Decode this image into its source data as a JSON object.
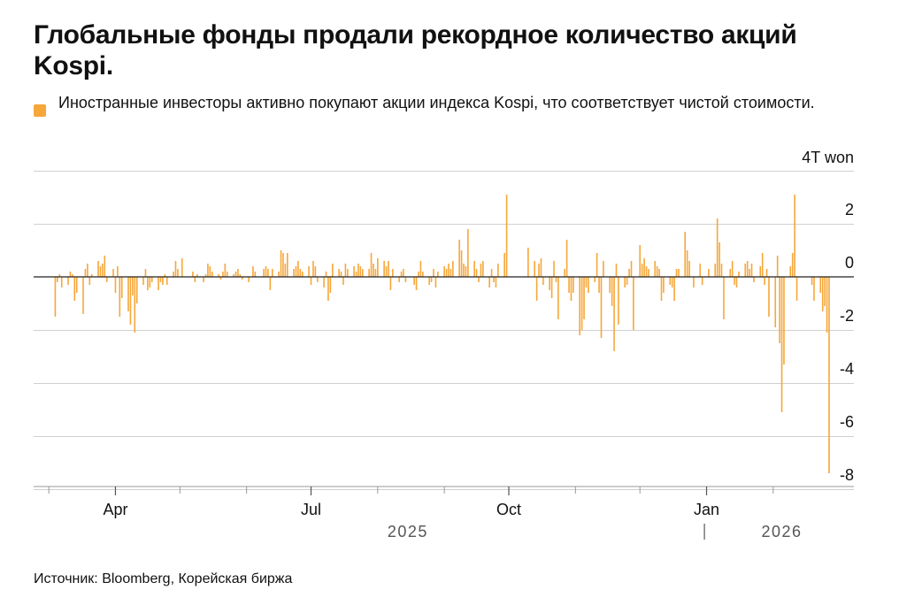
{
  "header": {
    "title": "Глобальные фонды продали рекордное количество акций Kospi."
  },
  "legend": {
    "text": "Иностранные инвесторы активно покупают акции индекса Kospi, что соответствует чистой стоимости."
  },
  "footer": {
    "source": "Источник: Bloomberg, Корейская биржа"
  },
  "colors": {
    "bar": "#F6A73A",
    "grid": "#D0D0D0",
    "zero_line": "#222222",
    "text": "#111111",
    "year_label": "#555555"
  },
  "chart_data": {
    "type": "bar",
    "title": "Глобальные фонды продали рекордное количество акций Kospi.",
    "legend": [
      "Иностранные инвесторы активно покупают акции индекса Kospi, что соответствует чистой стоимости."
    ],
    "unit_label": "4T won",
    "y_axis": {
      "ticks": [
        2,
        0,
        -2,
        -4,
        -6,
        -8
      ],
      "tick_labels": [
        "2",
        "0",
        "-2",
        "-4",
        "-6",
        "-8"
      ],
      "ylim": [
        -8.6,
        4
      ],
      "position": "right",
      "grid": true
    },
    "x_axis": {
      "start": "2025-02-24",
      "end": "2026-02-27",
      "month_labels": [
        {
          "date": "2025-04-01",
          "label": "Apr"
        },
        {
          "date": "2025-07-01",
          "label": "Jul"
        },
        {
          "date": "2025-10-01",
          "label": "Oct"
        },
        {
          "date": "2026-01-01",
          "label": "Jan"
        }
      ],
      "year_labels": [
        {
          "date": "2025-08-15",
          "label": "2025"
        },
        {
          "date": "2026-02-05",
          "label": "2026"
        }
      ],
      "year_divider": "2025-12-31",
      "minor_ticks": [
        "2025-03-01",
        "2025-05-01",
        "2025-06-01",
        "2025-08-01",
        "2025-09-01",
        "2025-11-01",
        "2025-12-01",
        "2026-02-01"
      ]
    },
    "series": [
      {
        "values": [
          [
            "2025-03-04",
            -1.5
          ],
          [
            "2025-03-05",
            -0.2
          ],
          [
            "2025-03-06",
            0.1
          ],
          [
            "2025-03-07",
            -0.4
          ],
          [
            "2025-03-10",
            -0.3
          ],
          [
            "2025-03-11",
            0.2
          ],
          [
            "2025-03-12",
            0.1
          ],
          [
            "2025-03-13",
            -0.9
          ],
          [
            "2025-03-14",
            -0.6
          ],
          [
            "2025-03-17",
            -1.4
          ],
          [
            "2025-03-18",
            0.3
          ],
          [
            "2025-03-19",
            0.5
          ],
          [
            "2025-03-20",
            -0.3
          ],
          [
            "2025-03-21",
            0.1
          ],
          [
            "2025-03-24",
            0.6
          ],
          [
            "2025-03-25",
            0.4
          ],
          [
            "2025-03-26",
            0.5
          ],
          [
            "2025-03-27",
            0.8
          ],
          [
            "2025-03-28",
            -0.2
          ],
          [
            "2025-03-31",
            0.3
          ],
          [
            "2025-04-01",
            -0.6
          ],
          [
            "2025-04-02",
            0.4
          ],
          [
            "2025-04-03",
            -1.5
          ],
          [
            "2025-04-04",
            -0.8
          ],
          [
            "2025-04-07",
            -1.3
          ],
          [
            "2025-04-08",
            -1.8
          ],
          [
            "2025-04-09",
            -0.7
          ],
          [
            "2025-04-10",
            -2.1
          ],
          [
            "2025-04-11",
            -1.0
          ],
          [
            "2025-04-14",
            -0.3
          ],
          [
            "2025-04-15",
            0.3
          ],
          [
            "2025-04-16",
            -0.5
          ],
          [
            "2025-04-17",
            -0.4
          ],
          [
            "2025-04-18",
            -0.2
          ],
          [
            "2025-04-21",
            -0.5
          ],
          [
            "2025-04-22",
            -0.2
          ],
          [
            "2025-04-23",
            -0.3
          ],
          [
            "2025-04-24",
            0.1
          ],
          [
            "2025-04-25",
            -0.3
          ],
          [
            "2025-04-28",
            0.2
          ],
          [
            "2025-04-29",
            0.6
          ],
          [
            "2025-04-30",
            0.3
          ],
          [
            "2025-05-02",
            0.7
          ],
          [
            "2025-05-07",
            0.2
          ],
          [
            "2025-05-08",
            -0.2
          ],
          [
            "2025-05-09",
            0.1
          ],
          [
            "2025-05-12",
            -0.2
          ],
          [
            "2025-05-13",
            0.1
          ],
          [
            "2025-05-14",
            0.5
          ],
          [
            "2025-05-15",
            0.4
          ],
          [
            "2025-05-16",
            0.2
          ],
          [
            "2025-05-19",
            0.1
          ],
          [
            "2025-05-20",
            -0.1
          ],
          [
            "2025-05-21",
            0.2
          ],
          [
            "2025-05-22",
            0.5
          ],
          [
            "2025-05-23",
            0.2
          ],
          [
            "2025-05-26",
            0.1
          ],
          [
            "2025-05-27",
            0.2
          ],
          [
            "2025-05-28",
            0.3
          ],
          [
            "2025-05-29",
            0.1
          ],
          [
            "2025-05-30",
            -0.1
          ],
          [
            "2025-06-02",
            -0.2
          ],
          [
            "2025-06-04",
            0.4
          ],
          [
            "2025-06-05",
            0.2
          ],
          [
            "2025-06-09",
            0.3
          ],
          [
            "2025-06-10",
            0.4
          ],
          [
            "2025-06-11",
            0.3
          ],
          [
            "2025-06-12",
            -0.5
          ],
          [
            "2025-06-13",
            0.3
          ],
          [
            "2025-06-16",
            0.2
          ],
          [
            "2025-06-17",
            1.0
          ],
          [
            "2025-06-18",
            0.9
          ],
          [
            "2025-06-19",
            0.5
          ],
          [
            "2025-06-20",
            0.9
          ],
          [
            "2025-06-23",
            0.3
          ],
          [
            "2025-06-24",
            0.4
          ],
          [
            "2025-06-25",
            0.6
          ],
          [
            "2025-06-26",
            0.3
          ],
          [
            "2025-06-27",
            0.2
          ],
          [
            "2025-06-30",
            0.4
          ],
          [
            "2025-07-01",
            -0.3
          ],
          [
            "2025-07-02",
            0.6
          ],
          [
            "2025-07-03",
            0.4
          ],
          [
            "2025-07-04",
            -0.2
          ],
          [
            "2025-07-07",
            -0.4
          ],
          [
            "2025-07-08",
            0.2
          ],
          [
            "2025-07-09",
            -0.9
          ],
          [
            "2025-07-10",
            -0.6
          ],
          [
            "2025-07-11",
            0.5
          ],
          [
            "2025-07-14",
            0.3
          ],
          [
            "2025-07-15",
            0.2
          ],
          [
            "2025-07-16",
            -0.3
          ],
          [
            "2025-07-17",
            0.5
          ],
          [
            "2025-07-18",
            0.3
          ],
          [
            "2025-07-21",
            0.4
          ],
          [
            "2025-07-22",
            0.2
          ],
          [
            "2025-07-23",
            0.5
          ],
          [
            "2025-07-24",
            0.4
          ],
          [
            "2025-07-25",
            0.3
          ],
          [
            "2025-07-28",
            0.3
          ],
          [
            "2025-07-29",
            0.9
          ],
          [
            "2025-07-30",
            0.5
          ],
          [
            "2025-07-31",
            0.3
          ],
          [
            "2025-08-01",
            0.7
          ],
          [
            "2025-08-04",
            0.6
          ],
          [
            "2025-08-05",
            0.4
          ],
          [
            "2025-08-06",
            0.6
          ],
          [
            "2025-08-07",
            -0.5
          ],
          [
            "2025-08-08",
            0.3
          ],
          [
            "2025-08-11",
            -0.2
          ],
          [
            "2025-08-12",
            0.2
          ],
          [
            "2025-08-13",
            0.3
          ],
          [
            "2025-08-14",
            -0.2
          ],
          [
            "2025-08-18",
            -0.3
          ],
          [
            "2025-08-19",
            -0.5
          ],
          [
            "2025-08-20",
            0.2
          ],
          [
            "2025-08-21",
            0.6
          ],
          [
            "2025-08-22",
            0.2
          ],
          [
            "2025-08-25",
            -0.3
          ],
          [
            "2025-08-26",
            -0.2
          ],
          [
            "2025-08-27",
            0.3
          ],
          [
            "2025-08-28",
            -0.4
          ],
          [
            "2025-08-29",
            0.2
          ],
          [
            "2025-09-01",
            0.4
          ],
          [
            "2025-09-02",
            0.3
          ],
          [
            "2025-09-03",
            0.5
          ],
          [
            "2025-09-04",
            0.3
          ],
          [
            "2025-09-05",
            0.6
          ],
          [
            "2025-09-08",
            1.4
          ],
          [
            "2025-09-09",
            1.0
          ],
          [
            "2025-09-10",
            0.5
          ],
          [
            "2025-09-11",
            0.4
          ],
          [
            "2025-09-12",
            1.8
          ],
          [
            "2025-09-15",
            0.6
          ],
          [
            "2025-09-16",
            0.3
          ],
          [
            "2025-09-17",
            -0.2
          ],
          [
            "2025-09-18",
            0.5
          ],
          [
            "2025-09-19",
            0.6
          ],
          [
            "2025-09-22",
            -0.4
          ],
          [
            "2025-09-23",
            0.3
          ],
          [
            "2025-09-24",
            -0.2
          ],
          [
            "2025-09-25",
            -0.4
          ],
          [
            "2025-09-26",
            0.5
          ],
          [
            "2025-09-29",
            0.9
          ],
          [
            "2025-09-30",
            3.1
          ],
          [
            "2025-10-10",
            1.1
          ],
          [
            "2025-10-13",
            0.6
          ],
          [
            "2025-10-14",
            -0.9
          ],
          [
            "2025-10-15",
            0.5
          ],
          [
            "2025-10-16",
            0.7
          ],
          [
            "2025-10-17",
            -0.3
          ],
          [
            "2025-10-20",
            -0.5
          ],
          [
            "2025-10-21",
            -0.8
          ],
          [
            "2025-10-22",
            0.6
          ],
          [
            "2025-10-23",
            -0.2
          ],
          [
            "2025-10-24",
            -1.6
          ],
          [
            "2025-10-27",
            0.3
          ],
          [
            "2025-10-28",
            1.4
          ],
          [
            "2025-10-29",
            -0.6
          ],
          [
            "2025-10-30",
            -0.9
          ],
          [
            "2025-10-31",
            -0.6
          ],
          [
            "2025-11-03",
            -2.2
          ],
          [
            "2025-11-04",
            -2.0
          ],
          [
            "2025-11-05",
            -1.6
          ],
          [
            "2025-11-06",
            -0.4
          ],
          [
            "2025-11-07",
            -0.6
          ],
          [
            "2025-11-10",
            -0.2
          ],
          [
            "2025-11-11",
            0.9
          ],
          [
            "2025-11-12",
            -0.6
          ],
          [
            "2025-11-13",
            -2.3
          ],
          [
            "2025-11-14",
            0.6
          ],
          [
            "2025-11-17",
            -0.6
          ],
          [
            "2025-11-18",
            -1.1
          ],
          [
            "2025-11-19",
            -2.8
          ],
          [
            "2025-11-20",
            0.5
          ],
          [
            "2025-11-21",
            -1.8
          ],
          [
            "2025-11-24",
            -0.4
          ],
          [
            "2025-11-25",
            -0.3
          ],
          [
            "2025-11-26",
            0.3
          ],
          [
            "2025-11-27",
            0.6
          ],
          [
            "2025-11-28",
            -2.0
          ],
          [
            "2025-12-01",
            1.2
          ],
          [
            "2025-12-02",
            0.5
          ],
          [
            "2025-12-03",
            0.7
          ],
          [
            "2025-12-04",
            0.4
          ],
          [
            "2025-12-05",
            0.3
          ],
          [
            "2025-12-08",
            0.6
          ],
          [
            "2025-12-09",
            0.4
          ],
          [
            "2025-12-10",
            0.3
          ],
          [
            "2025-12-11",
            -0.9
          ],
          [
            "2025-12-12",
            -0.6
          ],
          [
            "2025-12-15",
            -0.3
          ],
          [
            "2025-12-16",
            -0.4
          ],
          [
            "2025-12-17",
            -0.9
          ],
          [
            "2025-12-18",
            0.3
          ],
          [
            "2025-12-19",
            0.3
          ],
          [
            "2025-12-22",
            1.7
          ],
          [
            "2025-12-23",
            1.0
          ],
          [
            "2025-12-24",
            0.6
          ],
          [
            "2025-12-26",
            -0.4
          ],
          [
            "2025-12-29",
            0.5
          ],
          [
            "2025-12-30",
            -0.3
          ],
          [
            "2026-01-02",
            0.3
          ],
          [
            "2026-01-05",
            0.5
          ],
          [
            "2026-01-06",
            2.2
          ],
          [
            "2026-01-07",
            1.3
          ],
          [
            "2026-01-08",
            0.5
          ],
          [
            "2026-01-09",
            -1.6
          ],
          [
            "2026-01-12",
            0.3
          ],
          [
            "2026-01-13",
            0.6
          ],
          [
            "2026-01-14",
            -0.3
          ],
          [
            "2026-01-15",
            -0.4
          ],
          [
            "2026-01-16",
            0.2
          ],
          [
            "2026-01-19",
            0.5
          ],
          [
            "2026-01-20",
            0.6
          ],
          [
            "2026-01-21",
            0.3
          ],
          [
            "2026-01-22",
            0.5
          ],
          [
            "2026-01-23",
            -0.2
          ],
          [
            "2026-01-26",
            0.4
          ],
          [
            "2026-01-27",
            0.9
          ],
          [
            "2026-01-28",
            -0.3
          ],
          [
            "2026-01-29",
            0.3
          ],
          [
            "2026-01-30",
            -1.5
          ],
          [
            "2026-02-02",
            -1.9
          ],
          [
            "2026-02-03",
            0.8
          ],
          [
            "2026-02-04",
            -2.5
          ],
          [
            "2026-02-05",
            -5.1
          ],
          [
            "2026-02-06",
            -3.3
          ],
          [
            "2026-02-09",
            0.4
          ],
          [
            "2026-02-10",
            0.9
          ],
          [
            "2026-02-11",
            3.1
          ],
          [
            "2026-02-12",
            -0.9
          ],
          [
            "2026-02-19",
            -0.3
          ],
          [
            "2026-02-20",
            -0.9
          ],
          [
            "2026-02-23",
            -0.6
          ],
          [
            "2026-02-24",
            -1.3
          ],
          [
            "2026-02-25",
            -1.1
          ],
          [
            "2026-02-26",
            -2.1
          ],
          [
            "2026-02-27",
            -7.4
          ]
        ]
      }
    ]
  }
}
